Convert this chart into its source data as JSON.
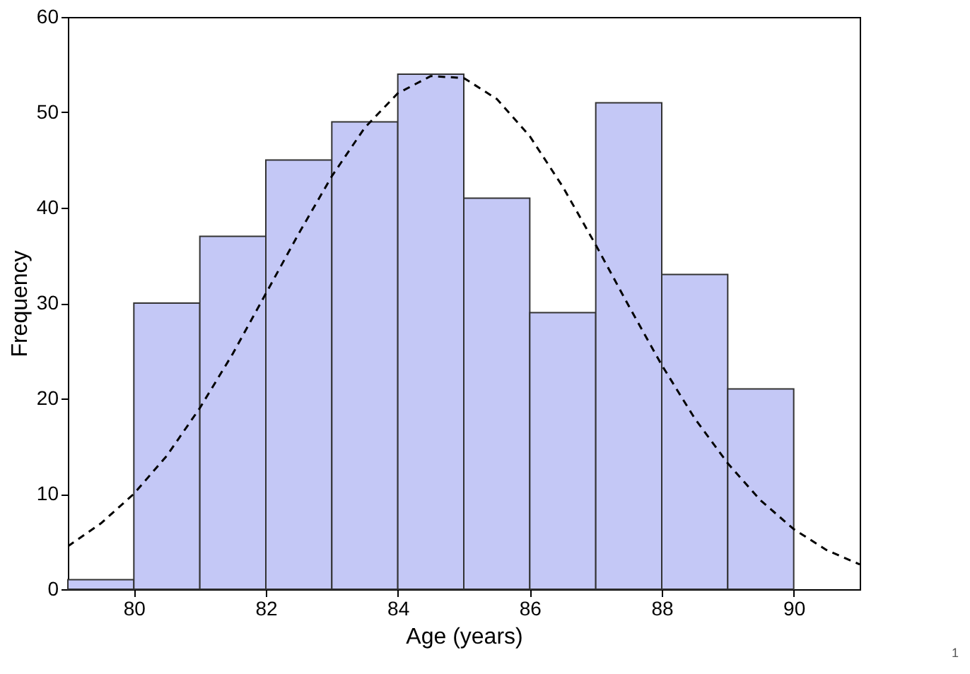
{
  "chart_data": {
    "type": "histogram",
    "xlabel": "Age (years)",
    "ylabel": "Frequency",
    "bins": [
      79,
      80,
      81,
      82,
      83,
      84,
      85,
      86,
      87,
      88,
      89,
      90
    ],
    "values": [
      1,
      30,
      37,
      45,
      49,
      54,
      41,
      29,
      51,
      33,
      21
    ],
    "color": "#c4c8f6",
    "series": [
      {
        "type": "line",
        "color": "#000000",
        "line_style": "dashed",
        "x": [
          79,
          79.5,
          80,
          80.5,
          81,
          81.5,
          82,
          82.5,
          83,
          83.5,
          84,
          84.5,
          85,
          85.5,
          86,
          86.5,
          87,
          87.5,
          88,
          88.5,
          89,
          89.5,
          90,
          90.5,
          91
        ],
        "values": [
          4.5,
          6.9,
          10,
          14,
          19,
          24.7,
          31,
          37.3,
          43.3,
          48.4,
          52,
          53.8,
          53.6,
          51.4,
          47.5,
          42.2,
          36.1,
          29.7,
          23.5,
          17.9,
          13.2,
          9.3,
          6.3,
          4.1,
          2.6
        ]
      }
    ],
    "xlim": [
      79,
      91
    ],
    "xticks": [
      80,
      82,
      84,
      86,
      88,
      90
    ],
    "ylim": [
      0,
      60
    ],
    "yticks": [
      0,
      10,
      20,
      30,
      40,
      50,
      60
    ],
    "grid": false,
    "annotations": [
      "1"
    ]
  }
}
